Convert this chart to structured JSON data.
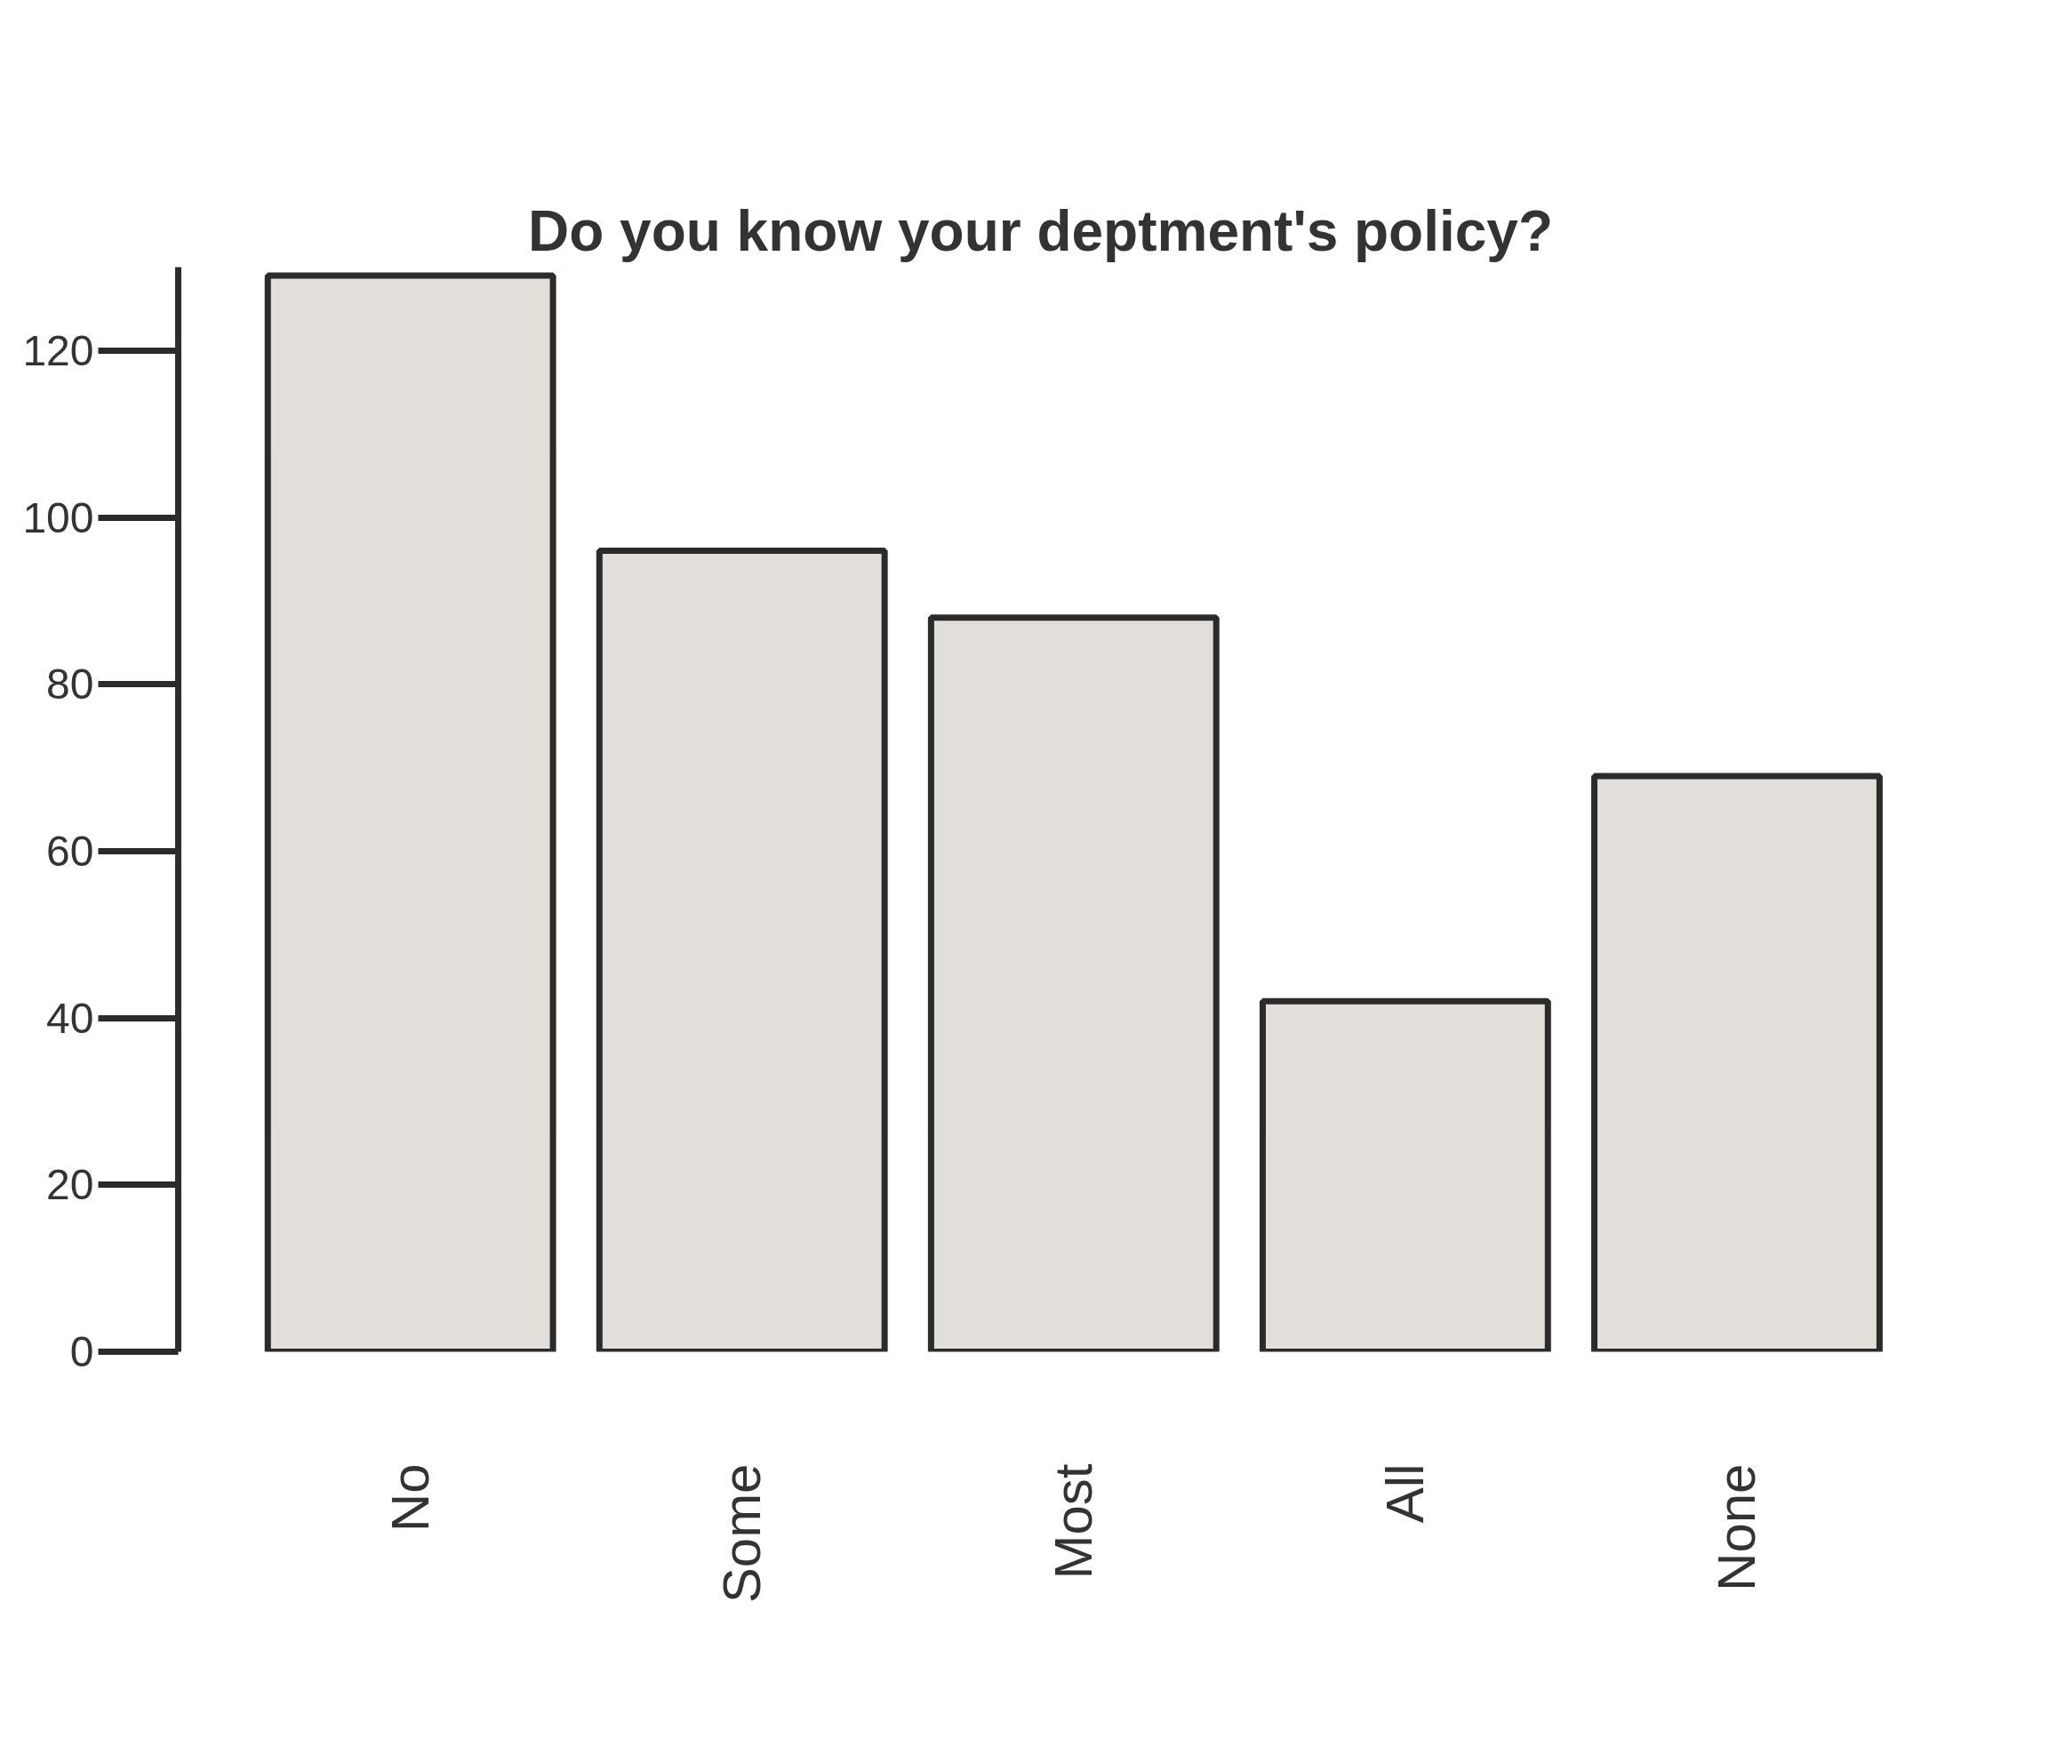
{
  "chart_data": {
    "type": "bar",
    "title": "Do you know your deptment's policy?",
    "categories": [
      "No",
      "Some",
      "Most",
      "All",
      "None"
    ],
    "values": [
      129,
      96,
      88,
      42,
      69
    ],
    "color": "#e2deda",
    "ylim": [
      0,
      130
    ],
    "yticks": [
      0,
      20,
      40,
      60,
      80,
      100,
      120
    ],
    "grid": false
  }
}
